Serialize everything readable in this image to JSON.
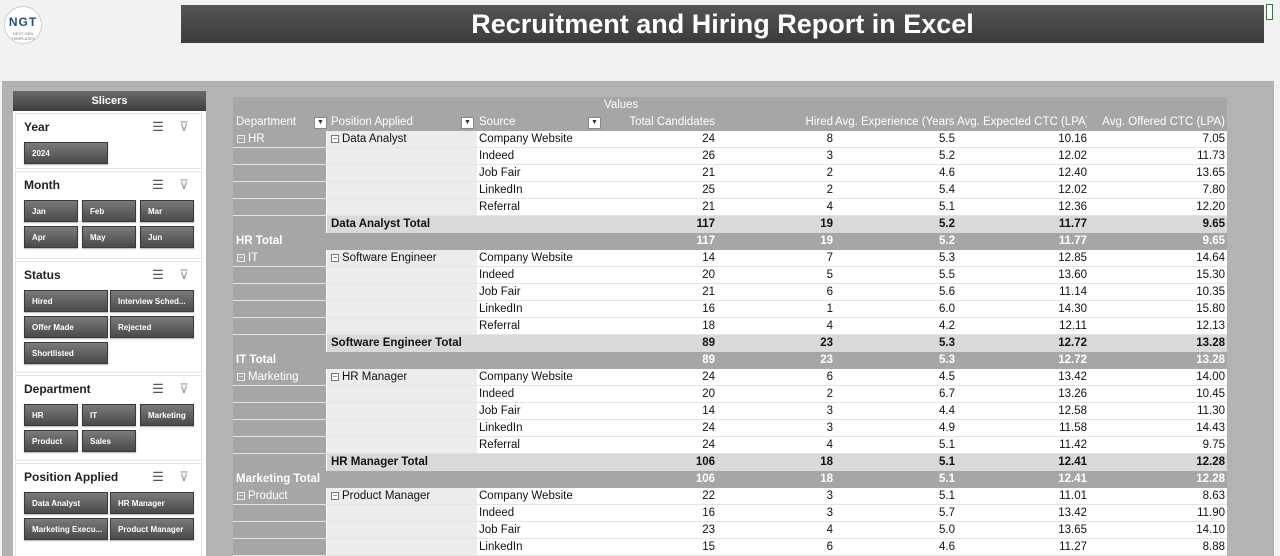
{
  "title": "Recruitment and Hiring Report in Excel",
  "logo": {
    "brand": "NGT",
    "tagline": "NEXT GEN TEMPLATES"
  },
  "slicers": {
    "header": "Slicers",
    "panels": [
      {
        "title": "Year",
        "items": [
          "2024"
        ]
      },
      {
        "title": "Month",
        "items": [
          "Jan",
          "Feb",
          "Mar",
          "Apr",
          "May",
          "Jun"
        ]
      },
      {
        "title": "Status",
        "items": [
          "Hired",
          "Interview Sched...",
          "Offer Made",
          "Rejected",
          "Shortlisted"
        ]
      },
      {
        "title": "Department",
        "items": [
          "HR",
          "IT",
          "Marketing",
          "Product",
          "Sales"
        ]
      },
      {
        "title": "Position Applied",
        "items": [
          "Data Analyst",
          "HR Manager",
          "Marketing Execu...",
          "Product Manager"
        ]
      }
    ]
  },
  "pivot": {
    "values_label": "Values",
    "headers": [
      "Department",
      "Position Applied",
      "Source",
      "Total Candidates",
      "Hired",
      "Avg. Experience (Years)",
      "Avg. Expected CTC (LPA)",
      "Avg. Offered CTC (LPA)"
    ],
    "departments": [
      {
        "name": "HR",
        "position": "Data Analyst",
        "rows": [
          [
            "Company Website",
            "24",
            "8",
            "5.5",
            "10.16",
            "7.05"
          ],
          [
            "Indeed",
            "26",
            "3",
            "5.2",
            "12.02",
            "11.73"
          ],
          [
            "Job Fair",
            "21",
            "2",
            "4.6",
            "12.40",
            "13.65"
          ],
          [
            "LinkedIn",
            "25",
            "2",
            "5.4",
            "12.02",
            "7.80"
          ],
          [
            "Referral",
            "21",
            "4",
            "5.1",
            "12.36",
            "12.20"
          ]
        ],
        "subtotal": [
          "Data Analyst Total",
          "117",
          "19",
          "5.2",
          "11.77",
          "9.65"
        ],
        "total": [
          "HR Total",
          "117",
          "19",
          "5.2",
          "11.77",
          "9.65"
        ]
      },
      {
        "name": "IT",
        "position": "Software Engineer",
        "rows": [
          [
            "Company Website",
            "14",
            "7",
            "5.3",
            "12.85",
            "14.64"
          ],
          [
            "Indeed",
            "20",
            "5",
            "5.5",
            "13.60",
            "15.30"
          ],
          [
            "Job Fair",
            "21",
            "6",
            "5.6",
            "11.14",
            "10.35"
          ],
          [
            "LinkedIn",
            "16",
            "1",
            "6.0",
            "14.30",
            "15.80"
          ],
          [
            "Referral",
            "18",
            "4",
            "4.2",
            "12.11",
            "12.13"
          ]
        ],
        "subtotal": [
          "Software Engineer Total",
          "89",
          "23",
          "5.3",
          "12.72",
          "13.28"
        ],
        "total": [
          "IT Total",
          "89",
          "23",
          "5.3",
          "12.72",
          "13.28"
        ]
      },
      {
        "name": "Marketing",
        "position": "HR Manager",
        "rows": [
          [
            "Company Website",
            "24",
            "6",
            "4.5",
            "13.42",
            "14.00"
          ],
          [
            "Indeed",
            "20",
            "2",
            "6.7",
            "13.26",
            "10.45"
          ],
          [
            "Job Fair",
            "14",
            "3",
            "4.4",
            "12.58",
            "11.30"
          ],
          [
            "LinkedIn",
            "24",
            "3",
            "4.9",
            "11.58",
            "14.43"
          ],
          [
            "Referral",
            "24",
            "4",
            "5.1",
            "11.42",
            "9.75"
          ]
        ],
        "subtotal": [
          "HR Manager Total",
          "106",
          "18",
          "5.1",
          "12.41",
          "12.28"
        ],
        "total": [
          "Marketing Total",
          "106",
          "18",
          "5.1",
          "12.41",
          "12.28"
        ]
      },
      {
        "name": "Product",
        "position": "Product Manager",
        "rows": [
          [
            "Company Website",
            "22",
            "3",
            "5.1",
            "11.01",
            "8.63"
          ],
          [
            "Indeed",
            "16",
            "3",
            "5.7",
            "13.42",
            "11.90"
          ],
          [
            "Job Fair",
            "23",
            "4",
            "5.0",
            "13.65",
            "14.10"
          ],
          [
            "LinkedIn",
            "15",
            "6",
            "4.6",
            "11.27",
            "8.88"
          ]
        ]
      }
    ]
  }
}
